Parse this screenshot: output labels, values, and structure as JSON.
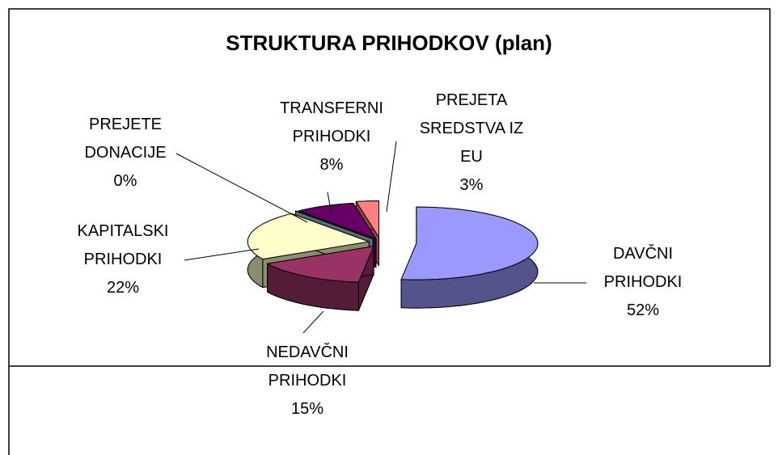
{
  "chart_data": {
    "type": "pie3d",
    "title": "STRUKTURA PRIHODKOV (plan)",
    "categories": [
      "DAVČNI PRIHODKI",
      "NEDAVČNI PRIHODKI",
      "KAPITALSKI PRIHODKI",
      "PREJETE DONACIJE",
      "TRANSFERNI PRIHODKI",
      "PREJETA SREDSTVA IZ EU"
    ],
    "values": [
      52,
      15,
      22,
      0,
      8,
      3
    ],
    "value_labels": [
      "52%",
      "15%",
      "22%",
      "0%",
      "8%",
      "3%"
    ],
    "colors": [
      "#9999ff",
      "#993366",
      "#ffffcc",
      "#99cccc",
      "#660066",
      "#ff8080"
    ]
  }
}
